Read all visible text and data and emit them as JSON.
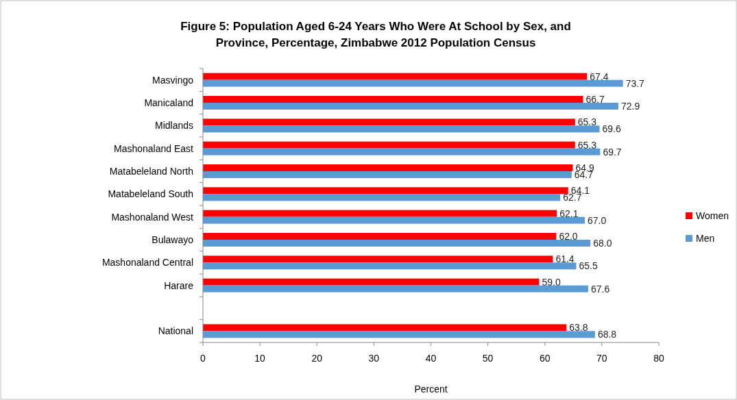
{
  "chart_data": {
    "type": "bar",
    "orientation": "horizontal",
    "title": "Figure 5: Population Aged 6-24 Years Who Were At School by Sex, and Province, Percentage, Zimbabwe 2012 Population Census",
    "xlabel": "Percent",
    "categories": [
      "Masvingo",
      "Manicaland",
      "Midlands",
      "Mashonaland East",
      "Matabeleland North",
      "Matabeleland South",
      "Mashonaland West",
      "Bulawayo",
      "Mashonaland Central",
      "Harare",
      null,
      "National"
    ],
    "series": [
      {
        "name": "Women",
        "color": "#ff0000",
        "values": [
          67.4,
          66.7,
          65.3,
          65.3,
          64.9,
          64.1,
          62.1,
          62.0,
          61.4,
          59.0,
          null,
          63.8
        ],
        "value_labels": [
          "67.4",
          "66.7",
          "65.3",
          "65.3",
          "64.9",
          "64.1",
          "62.1",
          "62.0",
          "61.4",
          "59.0",
          null,
          "63.8"
        ]
      },
      {
        "name": "Men",
        "color": "#5b9bd5",
        "values": [
          73.7,
          72.9,
          69.6,
          69.7,
          64.7,
          62.7,
          67.0,
          68.0,
          65.5,
          67.6,
          null,
          68.8
        ],
        "value_labels": [
          "73.7",
          "72.9",
          "69.6",
          "69.7",
          "64.7",
          "62.7",
          "67.0",
          "68.0",
          "65.5",
          "67.6",
          null,
          "68.8"
        ]
      }
    ],
    "xlim": [
      0,
      80
    ],
    "xticks": [
      0,
      10,
      20,
      30,
      40,
      50,
      60,
      70,
      80
    ],
    "grid": false,
    "legend": "right"
  }
}
